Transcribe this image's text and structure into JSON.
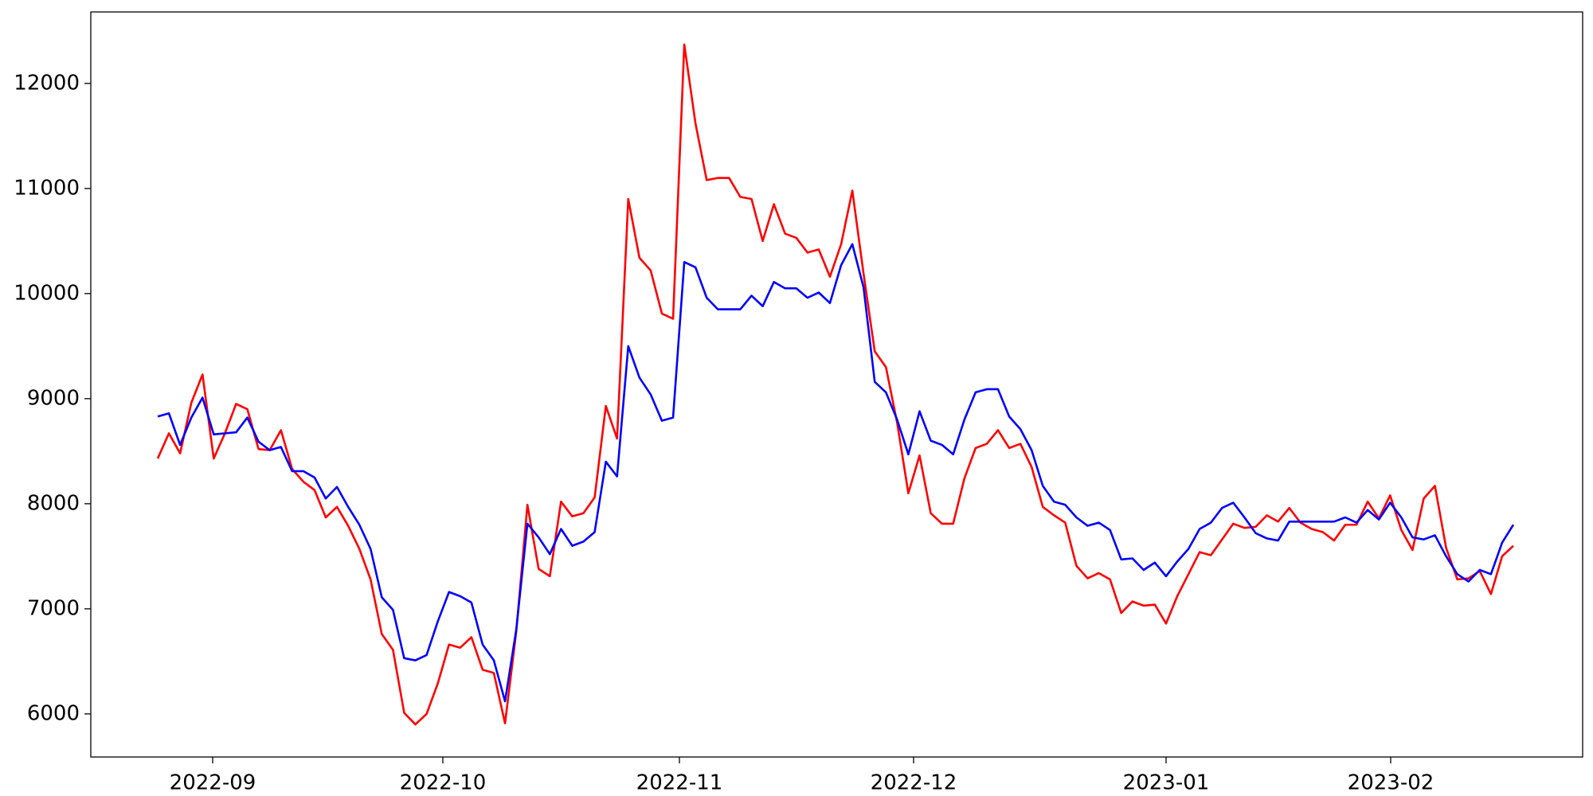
{
  "chart_data": {
    "type": "line",
    "xticks": [
      "2022-09",
      "2022-10",
      "2022-11",
      "2022-12",
      "2023-01",
      "2023-02"
    ],
    "ylim": [
      5590,
      12680
    ],
    "yticks": [
      6000,
      7000,
      8000,
      9000,
      10000,
      11000,
      12000
    ],
    "grid": false,
    "series": [
      {
        "color": "#ff0000",
        "values": [
          8430,
          8670,
          8480,
          8960,
          9230,
          8430,
          8670,
          8950,
          8900,
          8520,
          8510,
          8700,
          8330,
          8210,
          8130,
          7870,
          7970,
          7790,
          7570,
          7280,
          6760,
          6610,
          6010,
          5900,
          6000,
          6290,
          6660,
          6630,
          6730,
          6420,
          6390,
          5910,
          6780,
          7990,
          7380,
          7310,
          8020,
          7880,
          7910,
          8060,
          8930,
          8620,
          10900,
          10340,
          10220,
          9810,
          9760,
          12370,
          11620,
          11080,
          11100,
          11100,
          10920,
          10900,
          10500,
          10850,
          10570,
          10530,
          10390,
          10420,
          10160,
          10470,
          10980,
          10190,
          9450,
          9300,
          8770,
          8100,
          8460,
          7910,
          7810,
          7810,
          8240,
          8530,
          8570,
          8700,
          8530,
          8570,
          8350,
          7970,
          7890,
          7820,
          7410,
          7290,
          7340,
          7280,
          6960,
          7070,
          7030,
          7040,
          6860,
          7120,
          7330,
          7540,
          7510,
          7660,
          7810,
          7770,
          7780,
          7890,
          7830,
          7960,
          7820,
          7760,
          7730,
          7650,
          7800,
          7800,
          8020,
          7860,
          8080,
          7750,
          7560,
          8050,
          8170,
          7580,
          7280,
          7290,
          7360,
          7140,
          7500,
          7600
        ]
      },
      {
        "color": "#0000ff",
        "values": [
          8830,
          8860,
          8560,
          8820,
          9010,
          8660,
          8670,
          8680,
          8820,
          8590,
          8510,
          8540,
          8310,
          8310,
          8250,
          8050,
          8160,
          7970,
          7800,
          7570,
          7110,
          6990,
          6530,
          6510,
          6560,
          6880,
          7160,
          7120,
          7060,
          6660,
          6510,
          6120,
          6800,
          7810,
          7680,
          7520,
          7760,
          7600,
          7640,
          7730,
          8400,
          8260,
          9500,
          9200,
          9040,
          8790,
          8820,
          10300,
          10250,
          9960,
          9850,
          9850,
          9850,
          9980,
          9880,
          10110,
          10050,
          10050,
          9960,
          10010,
          9910,
          10270,
          10470,
          10060,
          9160,
          9060,
          8800,
          8470,
          8880,
          8600,
          8560,
          8470,
          8800,
          9060,
          9090,
          9090,
          8830,
          8710,
          8510,
          8170,
          8020,
          7990,
          7870,
          7790,
          7820,
          7750,
          7470,
          7480,
          7370,
          7440,
          7310,
          7450,
          7570,
          7760,
          7820,
          7960,
          8010,
          7870,
          7720,
          7670,
          7650,
          7830,
          7830,
          7830,
          7830,
          7830,
          7870,
          7820,
          7940,
          7850,
          8010,
          7870,
          7680,
          7660,
          7700,
          7500,
          7330,
          7260,
          7370,
          7330,
          7630,
          7800
        ]
      }
    ]
  }
}
